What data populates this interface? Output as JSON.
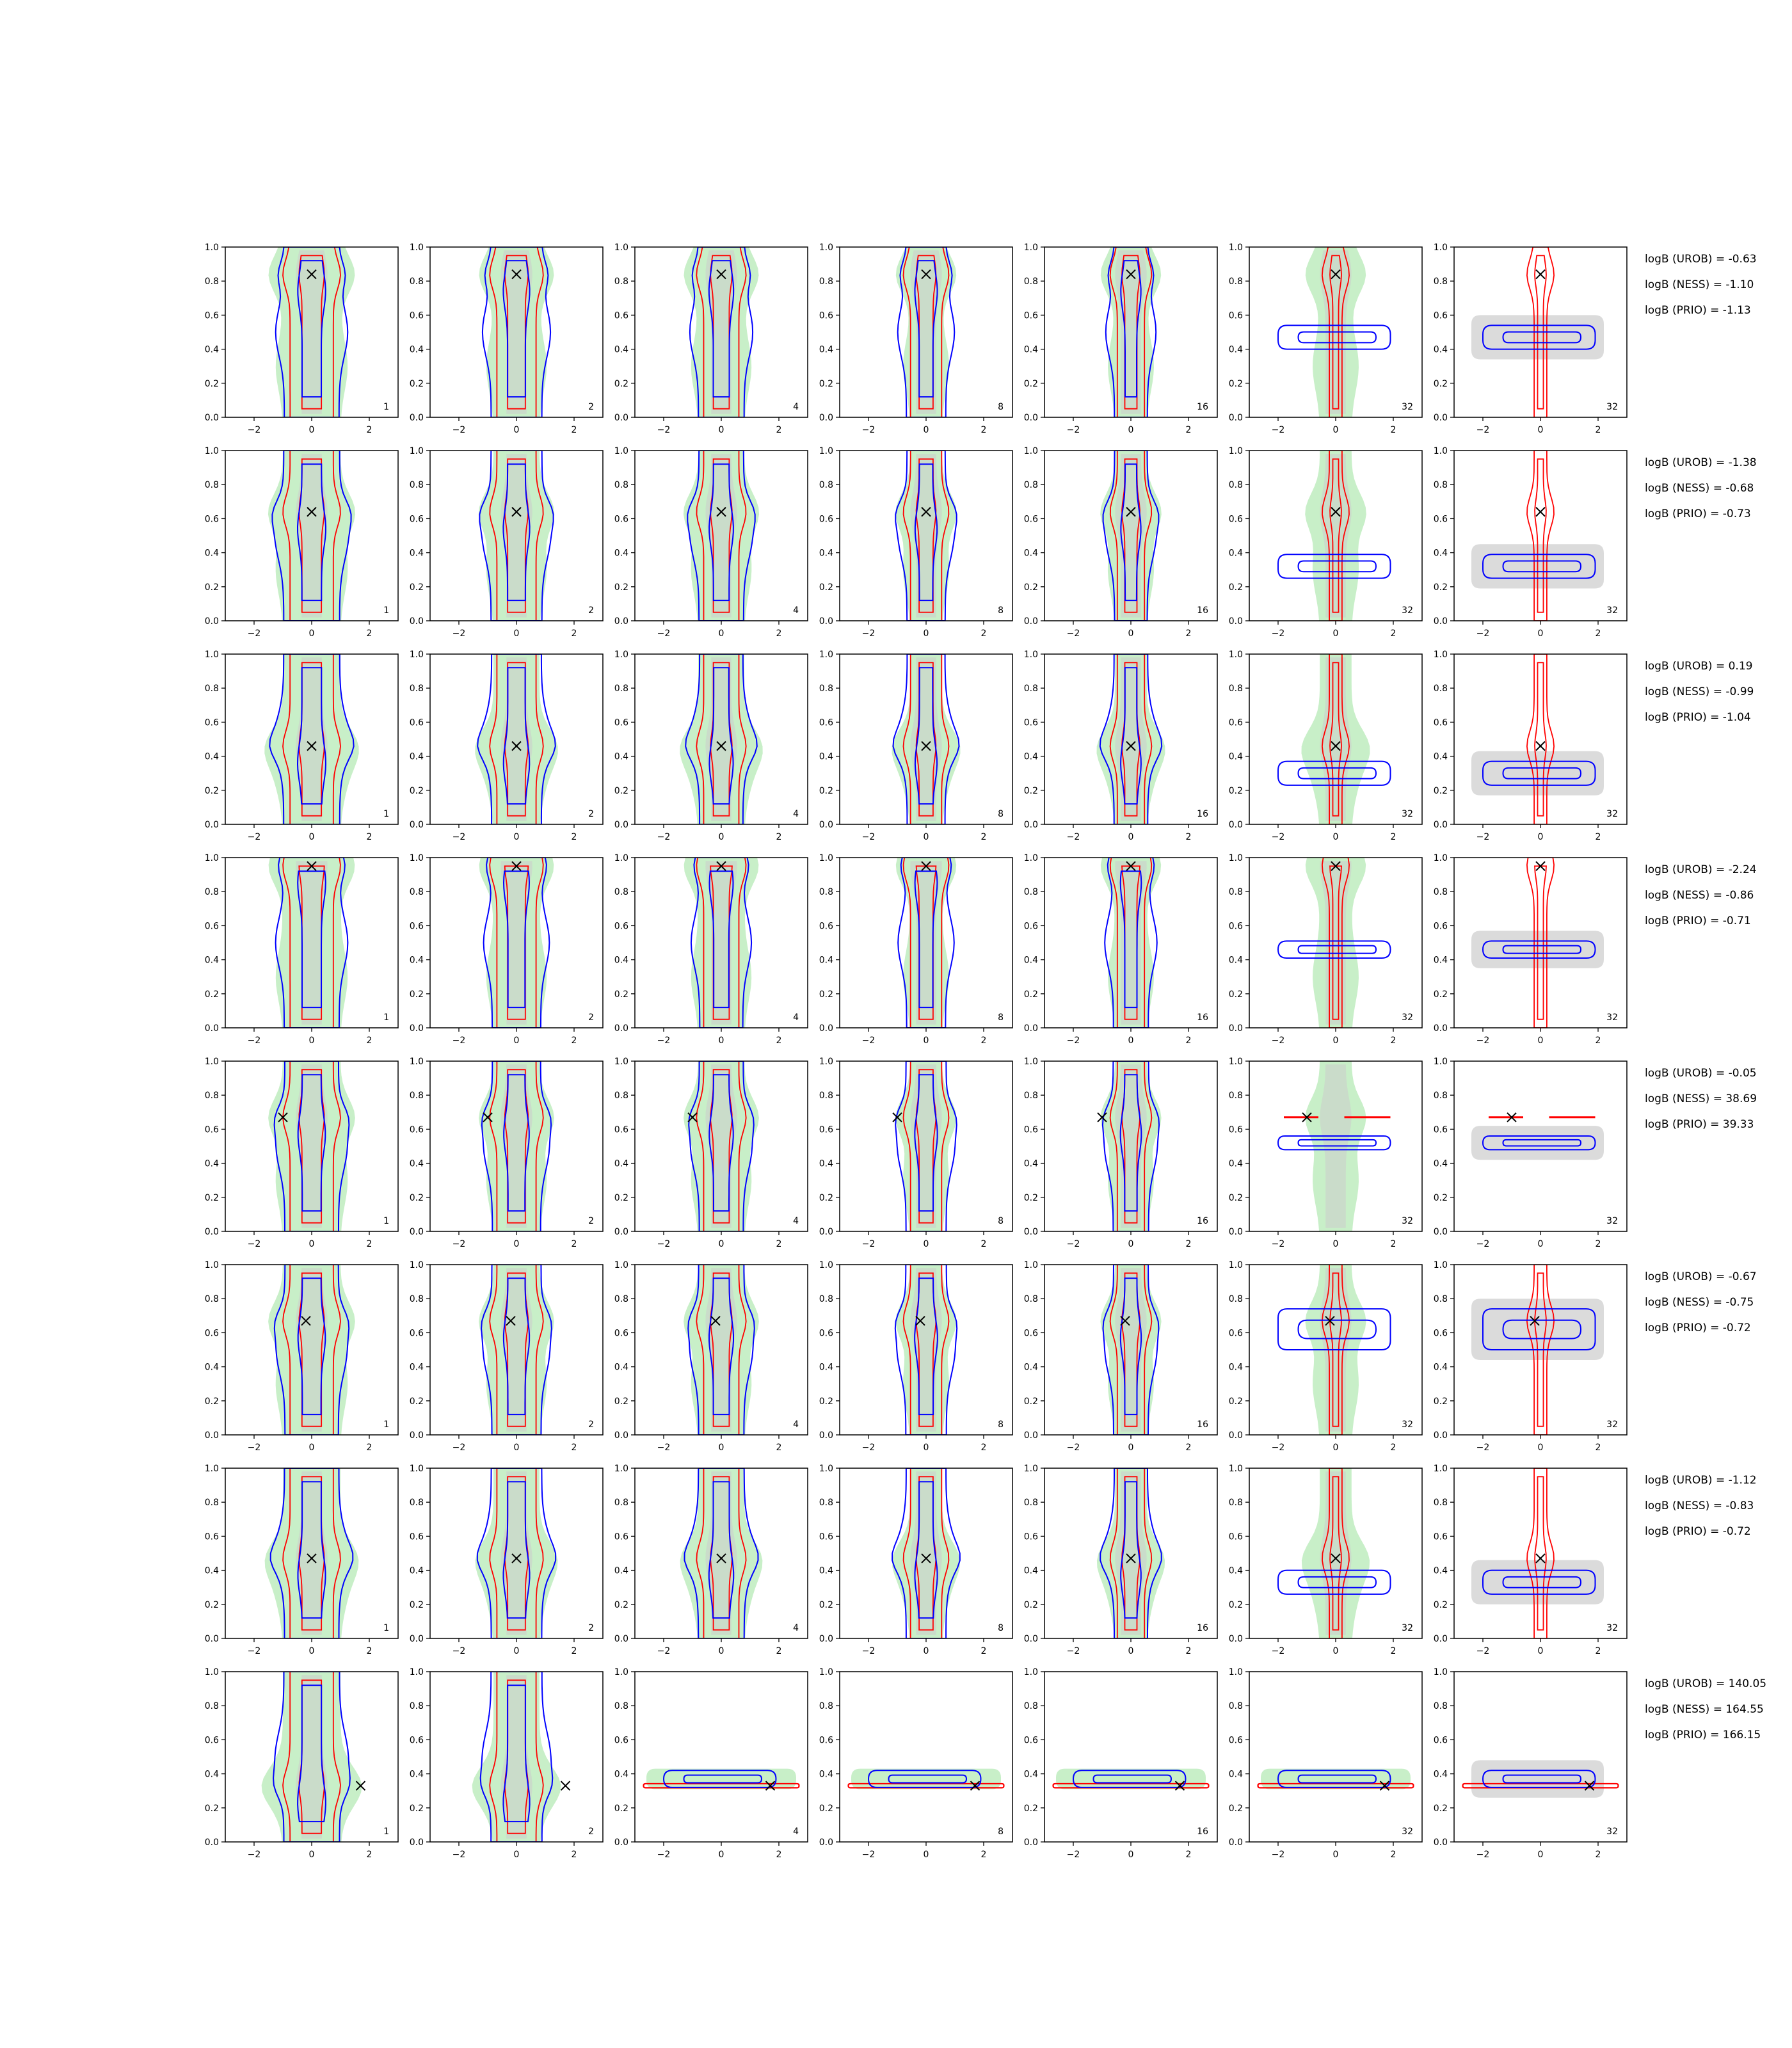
{
  "chart_data": {
    "type": "contour",
    "grid": "8 rows x 7 columns of panels",
    "x_ticks": [
      "−2",
      "0",
      "2"
    ],
    "y_ticks": [
      "0.0",
      "0.2",
      "0.4",
      "0.6",
      "0.8",
      "1.0"
    ],
    "xlim": [
      -3,
      3
    ],
    "ylim": [
      0,
      1
    ],
    "panel_labels": [
      "1",
      "2",
      "4",
      "8",
      "16",
      "32",
      "32"
    ],
    "colors": {
      "filled_green": "#c8efc8",
      "filled_gray": "#cccccc",
      "contour_blue": "#0000ff",
      "contour_red": "#ff0000",
      "marker": "#000000"
    },
    "rows": [
      {
        "marker": [
          0.0,
          0.84
        ],
        "logB": [
          "logB (UROB) = -0.63",
          "logB (NESS) = -1.10",
          "logB (PRIO) = -1.13"
        ],
        "blue_band": [
          0.47,
          0.07
        ],
        "wide_green": false
      },
      {
        "marker": [
          0.0,
          0.64
        ],
        "logB": [
          "logB (UROB) = -1.38",
          "logB (NESS) = -0.68",
          "logB (PRIO) = -0.73"
        ],
        "blue_band": [
          0.32,
          0.07
        ],
        "wide_green": false
      },
      {
        "marker": [
          0.0,
          0.46
        ],
        "logB": [
          "logB (UROB) = 0.19",
          "logB (NESS) = -0.99",
          "logB (PRIO) = -1.04"
        ],
        "blue_band": [
          0.3,
          0.07
        ],
        "wide_green": false
      },
      {
        "marker": [
          0.0,
          0.95
        ],
        "logB": [
          "logB (UROB) = -2.24",
          "logB (NESS) = -0.86",
          "logB (PRIO) = -0.71"
        ],
        "blue_band": [
          0.46,
          0.05
        ],
        "wide_green": false
      },
      {
        "marker": [
          -1.0,
          0.67
        ],
        "logB": [
          "logB (UROB) = -0.05",
          "logB (NESS) = 38.69",
          "logB (PRIO) = 39.33"
        ],
        "blue_band": [
          0.52,
          0.04
        ],
        "wide_green": false
      },
      {
        "marker": [
          -0.2,
          0.67
        ],
        "logB": [
          "logB (UROB) = -0.67",
          "logB (NESS) = -0.75",
          "logB (PRIO) = -0.72"
        ],
        "blue_band": [
          0.62,
          0.12
        ],
        "wide_green": false
      },
      {
        "marker": [
          0.0,
          0.47
        ],
        "logB": [
          "logB (UROB) = -1.12",
          "logB (NESS) = -0.83",
          "logB (PRIO) = -0.72"
        ],
        "blue_band": [
          0.33,
          0.07
        ],
        "wide_green": false
      },
      {
        "marker": [
          1.7,
          0.33
        ],
        "logB": [
          "logB (UROB) = 140.05",
          "logB (NESS) = 164.55",
          "logB (PRIO) = 166.15"
        ],
        "blue_band": [
          0.37,
          0.05
        ],
        "wide_green": true
      }
    ]
  }
}
